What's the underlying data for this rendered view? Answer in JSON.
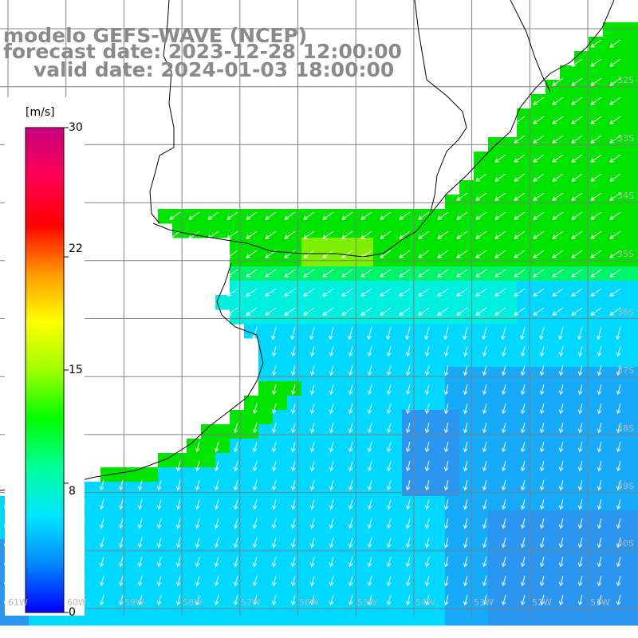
{
  "title": {
    "line1": "modelo GEFS-WAVE (NCEP)",
    "line2": "forecast date: 2023-12-28 12:00:00",
    "line3": "valid date: 2024-01-03 18:00:00"
  },
  "colorbar": {
    "unit": "[m/s]",
    "min": 0,
    "max": 30,
    "tick_values": [
      30,
      22,
      15,
      8,
      0
    ],
    "tick_labels": [
      "30",
      "22",
      "15",
      "8",
      "0"
    ],
    "stops": [
      "#0000ff",
      "#0088ff",
      "#00e6ff",
      "#00ff99",
      "#00ff00",
      "#a0ff00",
      "#ffff00",
      "#ff9900",
      "#ff0000",
      "#ff0055",
      "#c80080"
    ]
  },
  "map": {
    "lat_labels": [
      "32S",
      "33S",
      "34S",
      "35S",
      "36S",
      "37S",
      "38S",
      "39S",
      "40S"
    ],
    "lon_labels": [
      "61W",
      "60W",
      "59W",
      "58W",
      "57W",
      "56W",
      "55W",
      "54W",
      "53W",
      "52W",
      "51W"
    ],
    "land_color": "#ffffff",
    "grid_color": "#808080",
    "coast_color": "#000000",
    "arrow_color": "#ffffff",
    "colors": {
      "deep_blue": "#2a96f0",
      "blue": "#16aaf8",
      "cyan": "#00d8ff",
      "aqua": "#00f0e0",
      "green": "#00e400",
      "lime": "#7cf000",
      "spring": "#00f46a"
    }
  }
}
